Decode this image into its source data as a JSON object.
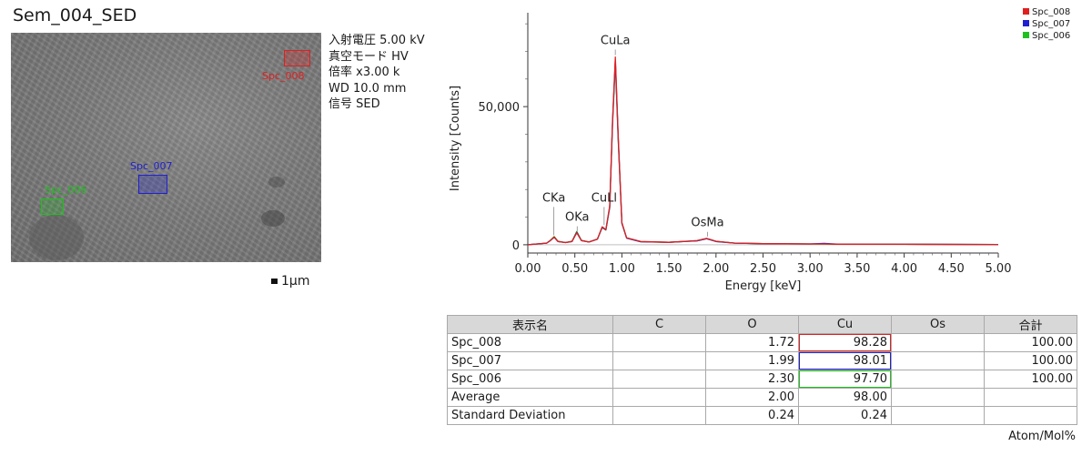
{
  "image_panel": {
    "title": "Sem_004_SED",
    "meta": [
      "入射電圧 5.00 kV",
      "真空モード HV",
      "倍率 x3.00 k",
      "WD 10.0 mm",
      "信号 SED"
    ],
    "scale_label": "1μm",
    "rois": [
      {
        "label": "Spc_008",
        "color": "#e02020"
      },
      {
        "label": "Spc_007",
        "color": "#2020d0"
      },
      {
        "label": "Spc_006",
        "color": "#20c020"
      }
    ]
  },
  "chart_data": {
    "type": "line",
    "xlabel": "Energy [keV]",
    "ylabel": "Intensity [Counts]",
    "xlim": [
      0,
      5
    ],
    "ylim": [
      -3000,
      84000
    ],
    "x_ticks": [
      "0.00",
      "0.50",
      "1.00",
      "1.50",
      "2.00",
      "2.50",
      "3.00",
      "3.50",
      "4.00",
      "4.50",
      "5.00"
    ],
    "y_ticks": [
      "0",
      "50,000"
    ],
    "legend": [
      "Spc_008",
      "Spc_007",
      "Spc_006"
    ],
    "legend_position": "top-right",
    "series": [
      {
        "name": "Spc_008",
        "color": "#e02020",
        "x": [
          0.0,
          0.1,
          0.2,
          0.24,
          0.28,
          0.32,
          0.4,
          0.47,
          0.52,
          0.57,
          0.65,
          0.74,
          0.79,
          0.83,
          0.87,
          0.9,
          0.93,
          0.96,
          1.0,
          1.05,
          1.2,
          1.5,
          1.8,
          1.9,
          2.0,
          2.2,
          2.5,
          3.0,
          3.15,
          3.3,
          4.0,
          5.0
        ],
        "y": [
          0,
          300,
          600,
          1500,
          2800,
          1200,
          800,
          1200,
          4300,
          1500,
          1000,
          2000,
          6500,
          5500,
          14000,
          45000,
          68000,
          40000,
          8000,
          2500,
          1200,
          900,
          1500,
          2300,
          1300,
          600,
          400,
          300,
          300,
          200,
          150,
          100
        ]
      },
      {
        "name": "Spc_007",
        "color": "#2020d0",
        "x": [
          0.0,
          0.1,
          0.2,
          0.24,
          0.28,
          0.32,
          0.4,
          0.47,
          0.52,
          0.57,
          0.65,
          0.74,
          0.79,
          0.83,
          0.87,
          0.9,
          0.93,
          0.96,
          1.0,
          1.05,
          1.2,
          1.5,
          1.8,
          1.9,
          2.0,
          2.2,
          2.5,
          3.0,
          3.15,
          3.3,
          4.0,
          5.0
        ],
        "y": [
          0,
          300,
          600,
          1500,
          2700,
          1200,
          800,
          1200,
          4500,
          1500,
          1000,
          2000,
          6300,
          5400,
          13600,
          44000,
          67000,
          39000,
          7800,
          2400,
          1100,
          900,
          1400,
          2200,
          1200,
          600,
          400,
          300,
          500,
          200,
          150,
          100
        ]
      },
      {
        "name": "Spc_006",
        "color": "#20c020",
        "x": [
          0.0,
          0.1,
          0.2,
          0.24,
          0.28,
          0.32,
          0.4,
          0.47,
          0.52,
          0.57,
          0.65,
          0.74,
          0.79,
          0.83,
          0.87,
          0.9,
          0.93,
          0.96,
          1.0,
          1.05,
          1.2,
          1.5,
          1.8,
          1.9,
          2.0,
          2.2,
          2.5,
          3.0,
          3.15,
          3.3,
          4.0,
          5.0
        ],
        "y": [
          0,
          300,
          600,
          1600,
          3000,
          1300,
          800,
          1300,
          4800,
          1600,
          1000,
          2000,
          6200,
          5300,
          13400,
          43500,
          66000,
          38500,
          7700,
          2400,
          1100,
          900,
          1400,
          2200,
          1200,
          600,
          400,
          300,
          300,
          200,
          150,
          100
        ]
      }
    ],
    "annotations": [
      {
        "text": "CKa",
        "x": 0.277,
        "y": 2800,
        "label_y": 15000
      },
      {
        "text": "OKa",
        "x": 0.525,
        "y": 4300,
        "label_y": 8000
      },
      {
        "text": "CuLl",
        "x": 0.811,
        "y": 6500,
        "label_y": 15000
      },
      {
        "text": "CuLa",
        "x": 0.93,
        "y": 68000,
        "label_y": 72000
      },
      {
        "text": "OsMa",
        "x": 1.91,
        "y": 2300,
        "label_y": 6000
      }
    ]
  },
  "table": {
    "headers": [
      "表示名",
      "C",
      "O",
      "Cu",
      "Os",
      "合計"
    ],
    "rows": [
      [
        "Spc_008",
        "",
        "1.72",
        "98.28",
        "",
        "100.00"
      ],
      [
        "Spc_007",
        "",
        "1.99",
        "98.01",
        "",
        "100.00"
      ],
      [
        "Spc_006",
        "",
        "2.30",
        "97.70",
        "",
        "100.00"
      ],
      [
        "Average",
        "",
        "2.00",
        "98.00",
        "",
        ""
      ],
      [
        "Standard Deviation",
        "",
        "0.24",
        "0.24",
        "",
        ""
      ]
    ],
    "unit": "Atom/Mol%"
  }
}
